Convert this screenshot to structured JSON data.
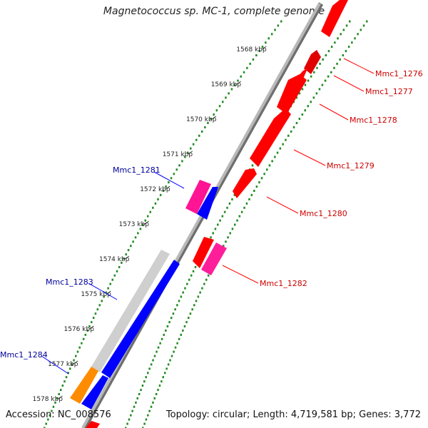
{
  "title": "Magnetococcus sp. MC-1, complete genome",
  "footer": {
    "accession": "Accession: NC_008576",
    "summary": "Topology: circular; Length: 4,719,581 bp; Genes: 3,772"
  },
  "colors": {
    "dots": "#228b22",
    "backbone": "#8c8c8c",
    "forward_gene": "#ff0000",
    "forward_gene_alt": "#ff1e9a",
    "reverse_gene": "#0000ff",
    "reverse_gene_alt": "#ff1493",
    "reverse_gene_grey": "#cfcfcf",
    "reverse_gene_orange": "#ff8c00",
    "label_forward": "#cc0000",
    "label_reverse": "#000099"
  },
  "ticks": [
    "1568 kbp",
    "1569 kbp",
    "1570 kbp",
    "1571 kbp",
    "1572 kbp",
    "1573 kbp",
    "1574 kbp",
    "1575 kbp",
    "1576 kbp",
    "1577 kbp",
    "1578 kbp"
  ],
  "gene_labels": {
    "mmc1_1276": "Mmc1_1276",
    "mmc1_1277": "Mmc1_1277",
    "mmc1_1278": "Mmc1_1278",
    "mmc1_1279": "Mmc1_1279",
    "mmc1_1280": "Mmc1_1280",
    "mmc1_1281": "Mmc1_1281",
    "mmc1_1282": "Mmc1_1282",
    "mmc1_1283": "Mmc1_1283",
    "mmc1_1284": "Mmc1_1284"
  }
}
